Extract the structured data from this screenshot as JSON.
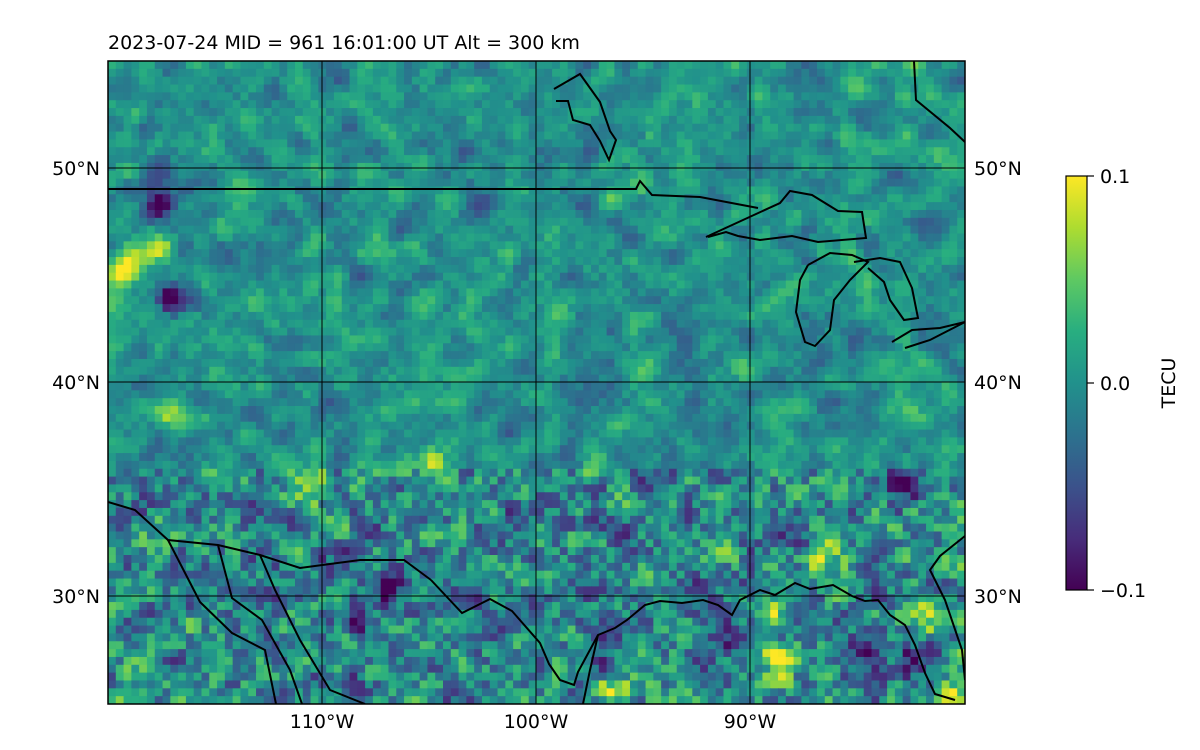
{
  "chart_data": {
    "type": "heatmap",
    "title": "2023-07-24  MID = 961    16:01:00  UT  Alt = 300 km",
    "x_ticks": [
      {
        "value": -110,
        "label": "110°W"
      },
      {
        "value": -100,
        "label": "100°W"
      },
      {
        "value": -90,
        "label": "90°W"
      }
    ],
    "y_ticks": [
      {
        "value": 50,
        "label": "50°N"
      },
      {
        "value": 40,
        "label": "40°N"
      },
      {
        "value": 30,
        "label": "30°N"
      }
    ],
    "xlim": [
      -120,
      -80
    ],
    "ylim": [
      25,
      55
    ],
    "grid": true,
    "colormap": "viridis",
    "colorbar": {
      "label": "TECU",
      "min": -0.1,
      "max": 0.1,
      "ticks": [
        {
          "value": 0.1,
          "label": "0.1"
        },
        {
          "value": 0.0,
          "label": "0.0"
        },
        {
          "value": -0.1,
          "label": "−0.1"
        }
      ]
    },
    "field_mean": 0.0,
    "hotspots": [
      {
        "lon": -117.8,
        "lat": 46.2,
        "value": 0.1
      },
      {
        "lon": -119.3,
        "lat": 45.4,
        "value": 0.1
      },
      {
        "lon": -110.5,
        "lat": 35.2,
        "value": 0.1
      },
      {
        "lon": -104.8,
        "lat": 36.2,
        "value": 0.06
      },
      {
        "lon": -96.5,
        "lat": 25.8,
        "value": 0.1
      },
      {
        "lon": -88.5,
        "lat": 27.0,
        "value": 0.1
      },
      {
        "lon": -80.7,
        "lat": 25.5,
        "value": 0.1
      },
      {
        "lon": -86.5,
        "lat": 32.0,
        "value": 0.08
      },
      {
        "lon": -81.8,
        "lat": 29.0,
        "value": 0.08
      },
      {
        "lon": -89.0,
        "lat": 29.5,
        "value": 0.08
      },
      {
        "lon": -117.0,
        "lat": 38.5,
        "value": 0.07
      },
      {
        "lon": -96.0,
        "lat": 49.0,
        "value": 0.05
      },
      {
        "lon": -117.5,
        "lat": 48.3,
        "value": -0.1
      },
      {
        "lon": -106.9,
        "lat": 30.6,
        "value": -0.1
      },
      {
        "lon": -117.0,
        "lat": 44.0,
        "value": -0.1
      },
      {
        "lon": -85.0,
        "lat": 27.5,
        "value": -0.1
      },
      {
        "lon": -82.5,
        "lat": 27.0,
        "value": -0.1
      },
      {
        "lon": -108.5,
        "lat": 29.0,
        "value": -0.07
      },
      {
        "lon": -97.0,
        "lat": 27.0,
        "value": -0.08
      },
      {
        "lon": -91.5,
        "lat": 28.0,
        "value": -0.06
      },
      {
        "lon": -83.0,
        "lat": 35.0,
        "value": -0.06
      },
      {
        "lon": -88.0,
        "lat": 33.0,
        "value": -0.05
      }
    ]
  }
}
